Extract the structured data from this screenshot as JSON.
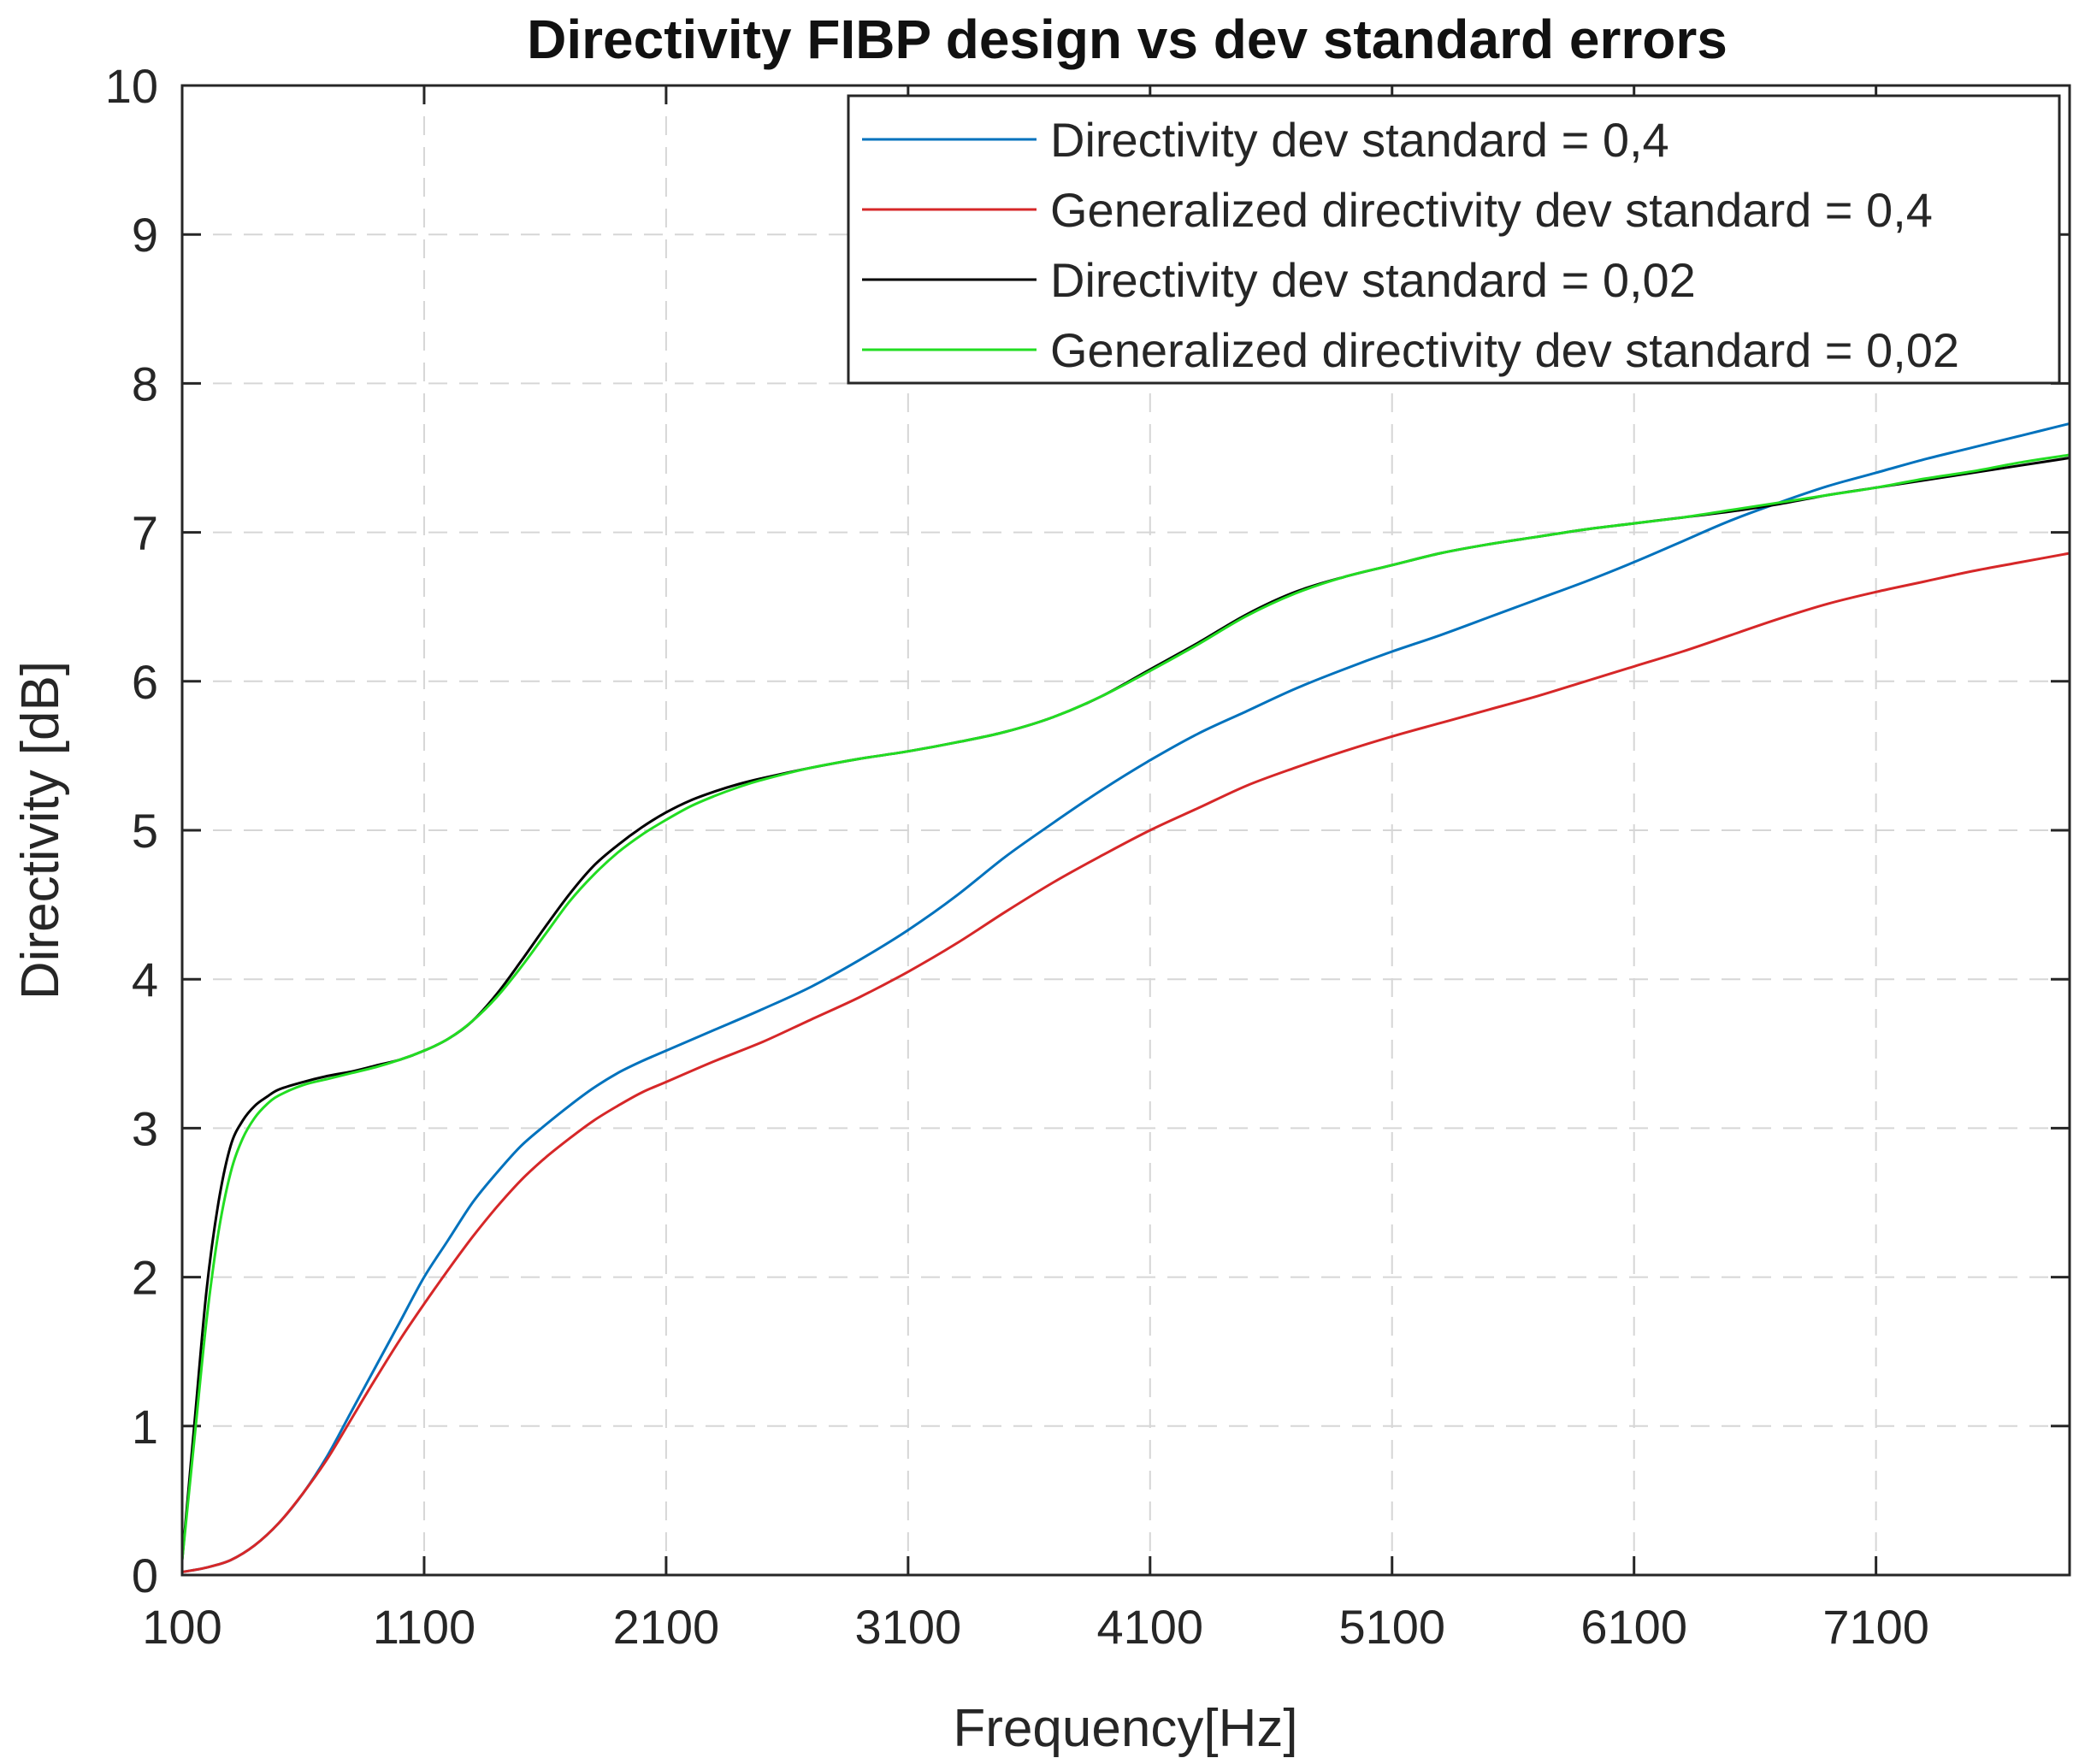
{
  "chart_data": {
    "type": "line",
    "title": "Directivity FIBP design vs dev standard errors",
    "xlabel": "Frequency[Hz]",
    "ylabel": "Directivity [dB]",
    "xlim": [
      100,
      7900
    ],
    "ylim": [
      0,
      10
    ],
    "x_ticks": [
      100,
      1100,
      2100,
      3100,
      4100,
      5100,
      6100,
      7100
    ],
    "y_ticks": [
      0,
      1,
      2,
      3,
      4,
      5,
      6,
      7,
      8,
      9,
      10
    ],
    "grid": true,
    "legend_position": "top-right",
    "series": [
      {
        "name": "Directivity dev standard = 0,4",
        "color": "#0072BD",
        "x": [
          100,
          200,
          300,
          400,
          500,
          600,
          700,
          800,
          900,
          1000,
          1100,
          1200,
          1300,
          1400,
          1500,
          1600,
          1700,
          1800,
          1900,
          2000,
          2100,
          2300,
          2500,
          2700,
          2900,
          3100,
          3300,
          3500,
          3700,
          3900,
          4100,
          4300,
          4500,
          4700,
          4900,
          5100,
          5300,
          5500,
          5700,
          5900,
          6100,
          6300,
          6500,
          6700,
          6900,
          7100,
          7300,
          7500,
          7700,
          7900
        ],
        "y": [
          0.02,
          0.05,
          0.1,
          0.2,
          0.35,
          0.55,
          0.8,
          1.1,
          1.4,
          1.7,
          2.0,
          2.25,
          2.5,
          2.7,
          2.88,
          3.02,
          3.15,
          3.27,
          3.37,
          3.45,
          3.52,
          3.66,
          3.8,
          3.95,
          4.13,
          4.33,
          4.56,
          4.82,
          5.05,
          5.27,
          5.47,
          5.65,
          5.8,
          5.95,
          6.08,
          6.2,
          6.31,
          6.43,
          6.55,
          6.67,
          6.8,
          6.94,
          7.08,
          7.2,
          7.31,
          7.4,
          7.49,
          7.57,
          7.65,
          7.73
        ]
      },
      {
        "name": "Generalized directivity dev standard = 0,4",
        "color": "#D62728",
        "x": [
          100,
          200,
          300,
          400,
          500,
          600,
          700,
          800,
          900,
          1000,
          1100,
          1200,
          1300,
          1400,
          1500,
          1600,
          1700,
          1800,
          1900,
          2000,
          2100,
          2300,
          2500,
          2700,
          2900,
          3100,
          3300,
          3500,
          3700,
          3900,
          4100,
          4300,
          4500,
          4700,
          4900,
          5100,
          5300,
          5500,
          5700,
          5900,
          6100,
          6300,
          6500,
          6700,
          6900,
          7100,
          7300,
          7500,
          7700,
          7900
        ],
        "y": [
          0.02,
          0.05,
          0.1,
          0.2,
          0.35,
          0.55,
          0.78,
          1.05,
          1.32,
          1.58,
          1.82,
          2.05,
          2.27,
          2.47,
          2.65,
          2.8,
          2.93,
          3.05,
          3.15,
          3.24,
          3.31,
          3.45,
          3.58,
          3.73,
          3.88,
          4.05,
          4.24,
          4.45,
          4.65,
          4.83,
          5.0,
          5.15,
          5.3,
          5.42,
          5.53,
          5.63,
          5.72,
          5.81,
          5.9,
          6.0,
          6.1,
          6.2,
          6.31,
          6.42,
          6.52,
          6.6,
          6.67,
          6.74,
          6.8,
          6.86
        ]
      },
      {
        "name": "Directivity dev standard = 0,02",
        "color": "#000000",
        "x": [
          100,
          150,
          200,
          250,
          300,
          350,
          400,
          450,
          500,
          600,
          700,
          800,
          900,
          1000,
          1100,
          1200,
          1300,
          1400,
          1500,
          1600,
          1700,
          1800,
          1900,
          2000,
          2100,
          2200,
          2300,
          2400,
          2500,
          2700,
          2900,
          3100,
          3300,
          3500,
          3700,
          3900,
          4100,
          4300,
          4500,
          4700,
          4900,
          5100,
          5300,
          5500,
          5700,
          5900,
          6100,
          6300,
          6500,
          6700,
          6900,
          7100,
          7300,
          7500,
          7700,
          7900
        ],
        "y": [
          0.1,
          1.0,
          1.9,
          2.5,
          2.88,
          3.05,
          3.15,
          3.21,
          3.26,
          3.31,
          3.35,
          3.38,
          3.42,
          3.46,
          3.52,
          3.6,
          3.72,
          3.9,
          4.12,
          4.35,
          4.57,
          4.76,
          4.9,
          5.02,
          5.12,
          5.2,
          5.26,
          5.31,
          5.35,
          5.42,
          5.48,
          5.53,
          5.59,
          5.66,
          5.76,
          5.9,
          6.08,
          6.26,
          6.45,
          6.6,
          6.7,
          6.78,
          6.86,
          6.92,
          6.97,
          7.02,
          7.06,
          7.1,
          7.14,
          7.19,
          7.25,
          7.3,
          7.35,
          7.4,
          7.45,
          7.5
        ]
      },
      {
        "name": "Generalized directivity dev standard = 0,02",
        "color": "#22DD22",
        "x": [
          100,
          150,
          200,
          250,
          300,
          350,
          400,
          450,
          500,
          600,
          700,
          800,
          900,
          1000,
          1100,
          1200,
          1300,
          1400,
          1500,
          1600,
          1700,
          1800,
          1900,
          2000,
          2100,
          2200,
          2300,
          2400,
          2500,
          2700,
          2900,
          3100,
          3300,
          3500,
          3700,
          3900,
          4100,
          4300,
          4500,
          4700,
          4900,
          5100,
          5300,
          5500,
          5700,
          5900,
          6100,
          6300,
          6500,
          6700,
          6900,
          7100,
          7300,
          7500,
          7700,
          7900
        ],
        "y": [
          0.1,
          0.9,
          1.7,
          2.3,
          2.7,
          2.93,
          3.07,
          3.16,
          3.22,
          3.29,
          3.33,
          3.37,
          3.41,
          3.46,
          3.52,
          3.6,
          3.72,
          3.88,
          4.08,
          4.3,
          4.52,
          4.7,
          4.85,
          4.97,
          5.07,
          5.16,
          5.23,
          5.29,
          5.34,
          5.42,
          5.48,
          5.53,
          5.59,
          5.66,
          5.76,
          5.9,
          6.07,
          6.25,
          6.44,
          6.59,
          6.7,
          6.78,
          6.86,
          6.92,
          6.97,
          7.02,
          7.06,
          7.1,
          7.15,
          7.2,
          7.25,
          7.3,
          7.36,
          7.41,
          7.47,
          7.52
        ]
      }
    ]
  }
}
